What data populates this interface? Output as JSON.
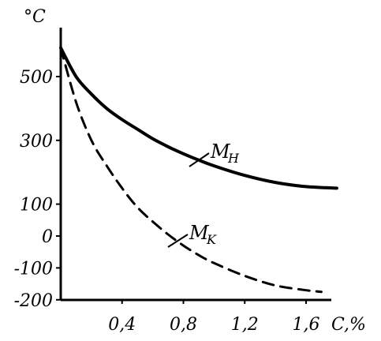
{
  "chart_data": {
    "type": "line",
    "ylabel": "°C",
    "xlabel": "C,%",
    "xlim": [
      0,
      1.8
    ],
    "ylim": [
      -200,
      700
    ],
    "x_ticks": [
      0.4,
      0.8,
      1.2,
      1.6
    ],
    "x_tick_labels": [
      "0,4",
      "0,8",
      "1,2",
      "1,6"
    ],
    "y_ticks": [
      500,
      300,
      100,
      0,
      -100,
      -200
    ],
    "y_tick_labels": [
      "500",
      "300",
      "100",
      "0",
      "-100",
      "-200"
    ],
    "grid": false,
    "legend": "none",
    "series": [
      {
        "name": "Mн",
        "label_main": "M",
        "label_sub": "H",
        "style": "solid",
        "x": [
          0,
          0.1,
          0.2,
          0.3,
          0.4,
          0.5,
          0.6,
          0.7,
          0.8,
          0.9,
          1.0,
          1.2,
          1.4,
          1.6,
          1.8
        ],
        "values": [
          590,
          500,
          445,
          400,
          365,
          335,
          305,
          280,
          258,
          238,
          220,
          190,
          168,
          155,
          150
        ]
      },
      {
        "name": "Mк",
        "label_main": "M",
        "label_sub": "K",
        "style": "dashed",
        "x": [
          0,
          0.1,
          0.2,
          0.3,
          0.4,
          0.5,
          0.6,
          0.7,
          0.8,
          0.9,
          1.0,
          1.2,
          1.4,
          1.6,
          1.7
        ],
        "values": [
          590,
          420,
          300,
          220,
          150,
          90,
          45,
          5,
          -30,
          -60,
          -85,
          -125,
          -155,
          -170,
          -175
        ]
      }
    ]
  }
}
